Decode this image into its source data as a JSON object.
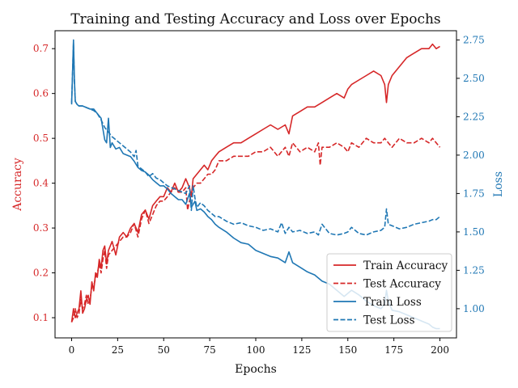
{
  "chart_data": {
    "type": "line",
    "title": "Training and Testing Accuracy and Loss over Epochs",
    "xlabel": "Epochs",
    "ylabel_left": "Accuracy",
    "ylabel_right": "Loss",
    "xlim": [
      -9,
      209
    ],
    "ylim_left": [
      0.055,
      0.74
    ],
    "ylim_right": [
      0.81,
      2.81
    ],
    "x_ticks": [
      0,
      25,
      50,
      75,
      100,
      125,
      150,
      175,
      200
    ],
    "y_ticks_left": [
      0.1,
      0.2,
      0.3,
      0.4,
      0.5,
      0.6,
      0.7
    ],
    "y_ticks_right": [
      1.0,
      1.25,
      1.5,
      1.75,
      2.0,
      2.25,
      2.5,
      2.75
    ],
    "grid": false,
    "legend_position": "lower-right",
    "colors": {
      "accuracy": "#d62728",
      "loss": "#1f77b4"
    },
    "series": [
      {
        "name": "Train Accuracy",
        "axis": "left",
        "style": "solid",
        "x": [
          0,
          1,
          2,
          3,
          4,
          5,
          6,
          7,
          8,
          9,
          10,
          11,
          12,
          13,
          14,
          15,
          16,
          17,
          18,
          19,
          20,
          22,
          24,
          26,
          28,
          30,
          32,
          34,
          36,
          38,
          40,
          42,
          44,
          46,
          48,
          50,
          52,
          54,
          56,
          58,
          60,
          62,
          64,
          65,
          66,
          68,
          70,
          72,
          74,
          76,
          78,
          80,
          84,
          88,
          92,
          96,
          100,
          104,
          108,
          112,
          116,
          118,
          120,
          124,
          128,
          132,
          136,
          140,
          144,
          148,
          150,
          152,
          156,
          160,
          164,
          168,
          170,
          171,
          172,
          174,
          178,
          182,
          186,
          190,
          194,
          196,
          198,
          200
        ],
        "y": [
          0.09,
          0.12,
          0.1,
          0.11,
          0.12,
          0.16,
          0.11,
          0.12,
          0.14,
          0.15,
          0.13,
          0.18,
          0.16,
          0.2,
          0.19,
          0.23,
          0.21,
          0.25,
          0.26,
          0.22,
          0.25,
          0.27,
          0.24,
          0.28,
          0.29,
          0.28,
          0.3,
          0.31,
          0.29,
          0.33,
          0.34,
          0.32,
          0.35,
          0.36,
          0.37,
          0.37,
          0.39,
          0.38,
          0.4,
          0.38,
          0.39,
          0.41,
          0.39,
          0.37,
          0.41,
          0.42,
          0.43,
          0.44,
          0.43,
          0.45,
          0.46,
          0.47,
          0.48,
          0.49,
          0.49,
          0.5,
          0.51,
          0.52,
          0.53,
          0.52,
          0.53,
          0.51,
          0.55,
          0.56,
          0.57,
          0.57,
          0.58,
          0.59,
          0.6,
          0.59,
          0.61,
          0.62,
          0.63,
          0.64,
          0.65,
          0.64,
          0.62,
          0.58,
          0.62,
          0.64,
          0.66,
          0.68,
          0.69,
          0.7,
          0.7,
          0.71,
          0.7,
          0.705
        ]
      },
      {
        "name": "Test Accuracy",
        "axis": "left",
        "style": "dashed",
        "x": [
          0,
          1,
          2,
          3,
          4,
          5,
          6,
          7,
          8,
          9,
          10,
          11,
          12,
          13,
          14,
          15,
          16,
          17,
          18,
          19,
          20,
          22,
          24,
          26,
          28,
          30,
          32,
          34,
          36,
          38,
          40,
          42,
          44,
          46,
          48,
          50,
          52,
          54,
          56,
          58,
          60,
          62,
          63,
          64,
          66,
          68,
          70,
          72,
          74,
          76,
          78,
          80,
          84,
          88,
          92,
          96,
          100,
          104,
          108,
          112,
          116,
          118,
          120,
          124,
          128,
          132,
          134,
          135,
          136,
          140,
          144,
          148,
          150,
          152,
          156,
          160,
          164,
          168,
          170,
          172,
          174,
          178,
          182,
          186,
          190,
          194,
          196,
          198,
          200
        ],
        "y": [
          0.09,
          0.1,
          0.12,
          0.1,
          0.11,
          0.14,
          0.12,
          0.13,
          0.15,
          0.13,
          0.14,
          0.17,
          0.17,
          0.19,
          0.2,
          0.22,
          0.2,
          0.23,
          0.25,
          0.21,
          0.24,
          0.25,
          0.26,
          0.27,
          0.28,
          0.28,
          0.29,
          0.31,
          0.28,
          0.32,
          0.34,
          0.31,
          0.33,
          0.35,
          0.36,
          0.36,
          0.37,
          0.38,
          0.39,
          0.38,
          0.38,
          0.39,
          0.34,
          0.36,
          0.39,
          0.4,
          0.4,
          0.41,
          0.42,
          0.42,
          0.43,
          0.45,
          0.45,
          0.46,
          0.46,
          0.46,
          0.47,
          0.47,
          0.48,
          0.46,
          0.48,
          0.46,
          0.49,
          0.47,
          0.48,
          0.47,
          0.49,
          0.44,
          0.48,
          0.48,
          0.49,
          0.48,
          0.47,
          0.49,
          0.48,
          0.5,
          0.49,
          0.49,
          0.5,
          0.49,
          0.48,
          0.5,
          0.49,
          0.49,
          0.5,
          0.49,
          0.5,
          0.49,
          0.48
        ]
      },
      {
        "name": "Train Loss",
        "axis": "right",
        "style": "solid",
        "x": [
          0,
          1,
          1.5,
          2,
          3,
          4,
          6,
          8,
          10,
          12,
          14,
          16,
          18,
          19,
          20,
          21,
          22,
          24,
          26,
          28,
          30,
          32,
          34,
          36,
          38,
          40,
          42,
          44,
          46,
          48,
          50,
          52,
          54,
          56,
          58,
          60,
          62,
          64,
          65,
          66,
          67,
          68,
          70,
          72,
          74,
          76,
          78,
          80,
          84,
          88,
          92,
          96,
          100,
          104,
          108,
          112,
          116,
          118,
          120,
          124,
          128,
          132,
          136,
          140,
          144,
          148,
          152,
          156,
          160,
          164,
          168,
          170,
          171,
          172,
          174,
          178,
          182,
          186,
          190,
          194,
          196,
          198,
          200
        ],
        "y": [
          2.33,
          2.75,
          2.5,
          2.35,
          2.33,
          2.32,
          2.32,
          2.31,
          2.3,
          2.3,
          2.27,
          2.24,
          2.1,
          2.08,
          2.24,
          2.05,
          2.08,
          2.04,
          2.05,
          2.01,
          2.0,
          1.99,
          1.96,
          1.92,
          1.9,
          1.89,
          1.87,
          1.84,
          1.82,
          1.8,
          1.8,
          1.78,
          1.75,
          1.73,
          1.71,
          1.71,
          1.68,
          1.75,
          1.66,
          1.68,
          1.7,
          1.64,
          1.65,
          1.63,
          1.6,
          1.58,
          1.55,
          1.53,
          1.5,
          1.46,
          1.43,
          1.42,
          1.38,
          1.36,
          1.34,
          1.33,
          1.3,
          1.37,
          1.3,
          1.27,
          1.24,
          1.22,
          1.18,
          1.16,
          1.12,
          1.08,
          1.12,
          1.09,
          1.05,
          1.02,
          1.0,
          1.03,
          1.12,
          1.05,
          0.99,
          0.98,
          0.96,
          0.94,
          0.92,
          0.9,
          0.88,
          0.87,
          0.87
        ]
      },
      {
        "name": "Test Loss",
        "axis": "right",
        "style": "dashed",
        "x": [
          0,
          1,
          1.5,
          2,
          3,
          4,
          6,
          8,
          10,
          12,
          14,
          16,
          18,
          20,
          22,
          24,
          26,
          28,
          30,
          32,
          34,
          35,
          36,
          38,
          40,
          42,
          44,
          46,
          48,
          50,
          52,
          54,
          56,
          58,
          60,
          62,
          64,
          65,
          66,
          67,
          68,
          70,
          72,
          74,
          76,
          78,
          80,
          84,
          88,
          92,
          96,
          100,
          104,
          108,
          112,
          114,
          116,
          118,
          120,
          124,
          128,
          132,
          134,
          136,
          140,
          144,
          148,
          150,
          152,
          156,
          160,
          164,
          168,
          170,
          171,
          172,
          174,
          178,
          182,
          186,
          190,
          194,
          196,
          198,
          200
        ],
        "y": [
          2.34,
          2.73,
          2.48,
          2.35,
          2.33,
          2.32,
          2.32,
          2.31,
          2.3,
          2.29,
          2.27,
          2.23,
          2.18,
          2.15,
          2.12,
          2.1,
          2.08,
          2.06,
          2.04,
          2.02,
          1.99,
          2.03,
          1.93,
          1.91,
          1.89,
          1.86,
          1.88,
          1.85,
          1.84,
          1.82,
          1.8,
          1.79,
          1.78,
          1.77,
          1.76,
          1.75,
          1.8,
          1.64,
          1.8,
          1.72,
          1.66,
          1.69,
          1.67,
          1.64,
          1.62,
          1.6,
          1.6,
          1.57,
          1.55,
          1.56,
          1.54,
          1.53,
          1.51,
          1.52,
          1.5,
          1.56,
          1.49,
          1.53,
          1.5,
          1.51,
          1.49,
          1.5,
          1.48,
          1.55,
          1.49,
          1.48,
          1.49,
          1.5,
          1.53,
          1.49,
          1.48,
          1.5,
          1.51,
          1.53,
          1.65,
          1.55,
          1.54,
          1.52,
          1.53,
          1.55,
          1.56,
          1.57,
          1.58,
          1.58,
          1.6
        ]
      }
    ]
  }
}
